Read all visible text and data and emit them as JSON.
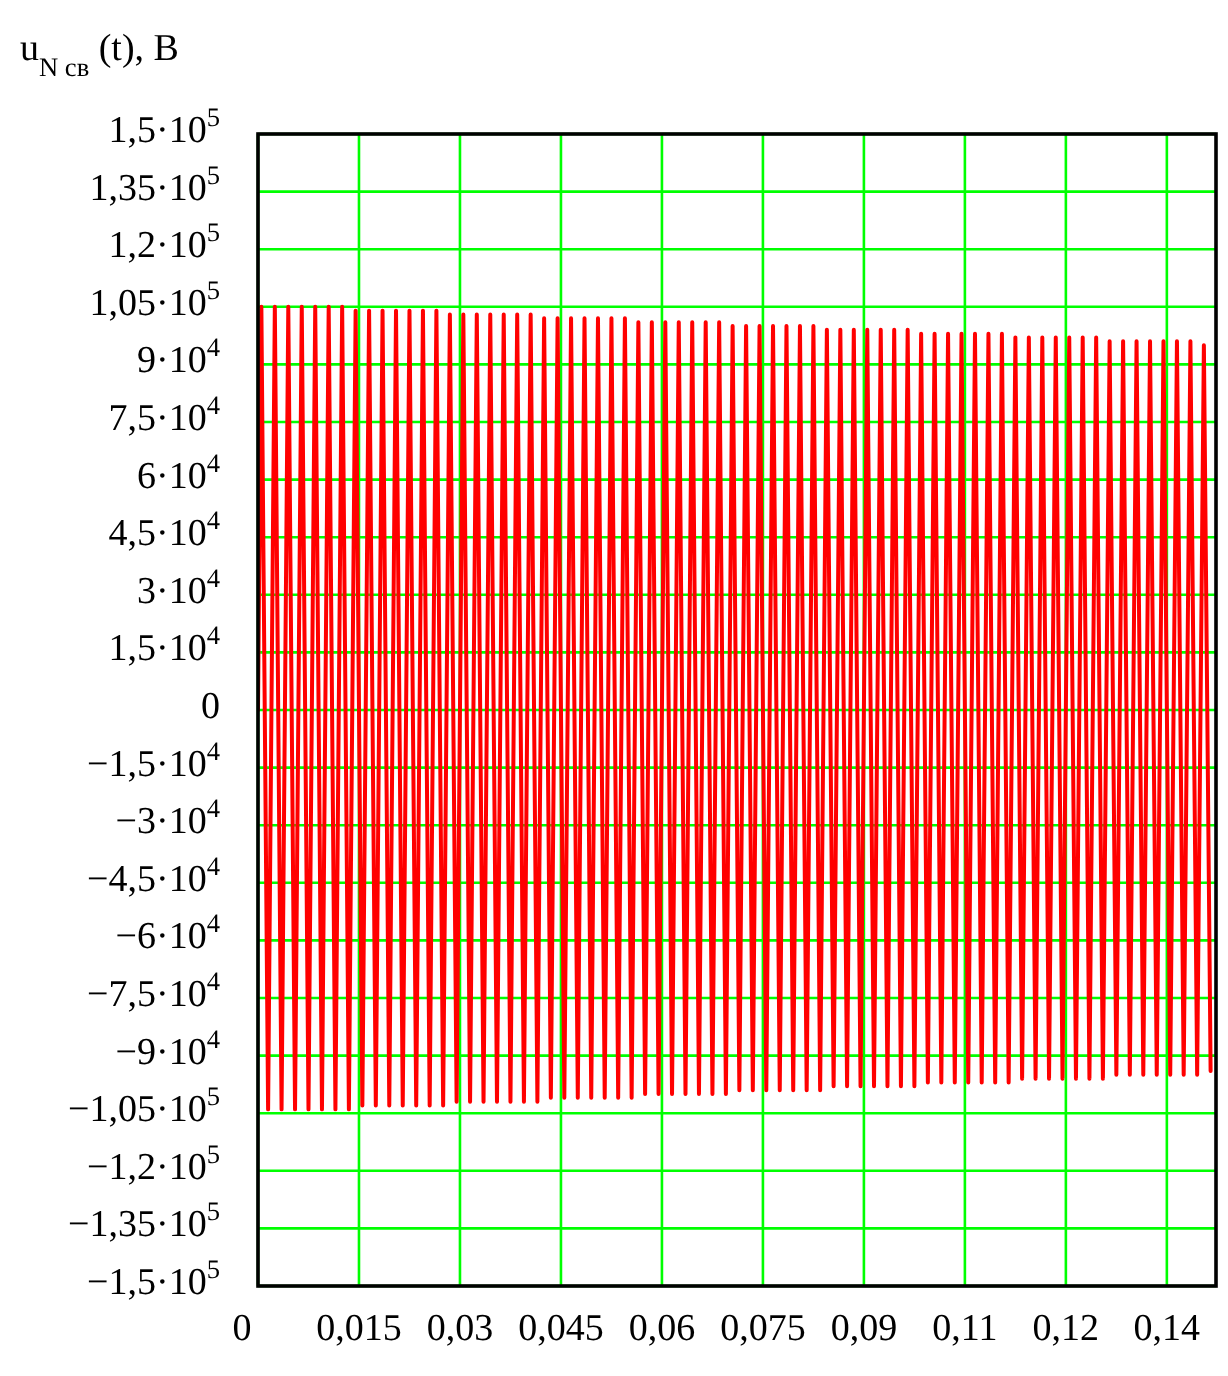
{
  "chart_data": {
    "type": "line",
    "ylabel": "u$_{N св}$ (t), В",
    "xlim": [
      0,
      0.1423
    ],
    "xticks": [
      0,
      {
        "value": 0.015,
        "label": "0,015"
      },
      {
        "value": 0.03,
        "label": "0,03"
      },
      {
        "value": 0.045,
        "label": "0,045"
      },
      {
        "value": 0.06,
        "label": "0,06"
      },
      {
        "value": 0.075,
        "label": "0,075"
      },
      {
        "value": 0.09,
        "label": "0,09"
      },
      {
        "value": 0.105,
        "label": "0,11"
      },
      {
        "value": 0.12,
        "label": "0,12"
      },
      {
        "value": 0.135,
        "label": "0,14"
      }
    ],
    "ylim": [
      -150000,
      150000
    ],
    "yticks": [
      {
        "value": 150000,
        "label": "1,5·10$^{5}$"
      },
      {
        "value": 135000,
        "label": "1,35·10$^{5}$"
      },
      {
        "value": 120000,
        "label": "1,2·10$^{5}$"
      },
      {
        "value": 105000,
        "label": "1,05·10$^{5}$"
      },
      {
        "value": 90000,
        "label": "9·10$^{4}$"
      },
      {
        "value": 75000,
        "label": "7,5·10$^{4}$"
      },
      {
        "value": 60000,
        "label": "6·10$^{4}$"
      },
      {
        "value": 45000,
        "label": "4,5·10$^{4}$"
      },
      {
        "value": 30000,
        "label": "3·10$^{4}$"
      },
      {
        "value": 15000,
        "label": "1,5·10$^{4}$"
      },
      0,
      {
        "value": -15000,
        "label": "−1,5·10$^{4}$"
      },
      {
        "value": -30000,
        "label": "−3·10$^{4}$"
      },
      {
        "value": -45000,
        "label": "−4,5·10$^{4}$"
      },
      {
        "value": -60000,
        "label": "−6·10$^{4}$"
      },
      {
        "value": -75000,
        "label": "−7,5·10$^{4}$"
      },
      {
        "value": -90000,
        "label": "−9·10$^{4}$"
      },
      {
        "value": -105000,
        "label": "−1,05·10$^{5}$"
      },
      {
        "value": -120000,
        "label": "−1,2·10$^{5}$"
      },
      {
        "value": -135000,
        "label": "−1,35·10$^{5}$"
      },
      {
        "value": -150000,
        "label": "−1,5·10$^{5}$"
      }
    ],
    "grid": true,
    "marker": "none",
    "line_style": "solid",
    "series": [
      {
        "color": "#ff0000",
        "x": [
          0,
          0.0005,
          0.0015,
          0.0025,
          0.0035,
          0.0045,
          0.0055,
          0.0065,
          0.0075,
          0.0085,
          0.0095,
          0.0105,
          0.0115,
          0.0125,
          0.0135,
          0.0145,
          0.0155,
          0.0165,
          0.0175,
          0.0185,
          0.0195,
          0.0205,
          0.0215,
          0.0225,
          0.0235,
          0.0245,
          0.0255,
          0.0265,
          0.0275,
          0.0285,
          0.0295,
          0.0305,
          0.0315,
          0.0325,
          0.0335,
          0.0345,
          0.0355,
          0.0365,
          0.0375,
          0.0385,
          0.0395,
          0.0405,
          0.0415,
          0.0425,
          0.0435,
          0.0445,
          0.0455,
          0.0465,
          0.0475,
          0.0485,
          0.0495,
          0.0505,
          0.0515,
          0.0525,
          0.0535,
          0.0545,
          0.0555,
          0.0565,
          0.0575,
          0.0585,
          0.0595,
          0.0605,
          0.0615,
          0.0625,
          0.0635,
          0.0645,
          0.0655,
          0.0665,
          0.0675,
          0.0685,
          0.0695,
          0.0705,
          0.0715,
          0.0725,
          0.0735,
          0.0745,
          0.0755,
          0.0765,
          0.0775,
          0.0785,
          0.0795,
          0.0805,
          0.0815,
          0.0825,
          0.0835,
          0.0845,
          0.0855,
          0.0865,
          0.0875,
          0.0885,
          0.0895,
          0.0905,
          0.0915,
          0.0925,
          0.0935,
          0.0945,
          0.0955,
          0.0965,
          0.0975,
          0.0985,
          0.0995,
          0.1005,
          0.1015,
          0.1025,
          0.1035,
          0.1045,
          0.1055,
          0.1065,
          0.1075,
          0.1085,
          0.1095,
          0.1105,
          0.1115,
          0.1125,
          0.1135,
          0.1145,
          0.1155,
          0.1165,
          0.1175,
          0.1185,
          0.1195,
          0.1205,
          0.1215,
          0.1225,
          0.1235,
          0.1245,
          0.1255,
          0.1265,
          0.1275,
          0.1285,
          0.1295,
          0.1305,
          0.1315,
          0.1325,
          0.1335,
          0.1345,
          0.1355,
          0.1365,
          0.1375,
          0.1385,
          0.1395,
          0.1405,
          0.1415
        ],
        "values": [
          0,
          105000,
          -104000,
          105000,
          -104000,
          105000,
          -104000,
          105000,
          -104000,
          105000,
          -104000,
          105000,
          -104000,
          105000,
          -104000,
          104000,
          -103000,
          104000,
          -103000,
          104000,
          -103000,
          104000,
          -103000,
          104000,
          -103000,
          104000,
          -103000,
          104000,
          -103000,
          103000,
          -102000,
          103000,
          -102000,
          103000,
          -102000,
          103000,
          -102000,
          103000,
          -102000,
          103000,
          -102000,
          103000,
          -102000,
          102000,
          -101000,
          102000,
          -101000,
          102000,
          -101000,
          102000,
          -101000,
          102000,
          -101000,
          102000,
          -101000,
          102000,
          -101000,
          101000,
          -100000,
          101000,
          -100000,
          101000,
          -100000,
          101000,
          -100000,
          101000,
          -100000,
          101000,
          -100000,
          101000,
          -100000,
          100000,
          -99000,
          100000,
          -99000,
          100000,
          -99000,
          100000,
          -99000,
          100000,
          -99000,
          100000,
          -99000,
          100000,
          -99000,
          99000,
          -98000,
          99000,
          -98000,
          99000,
          -98000,
          99000,
          -98000,
          99000,
          -98000,
          99000,
          -98000,
          99000,
          -98000,
          98000,
          -97000,
          98000,
          -97000,
          98000,
          -97000,
          98000,
          -97000,
          98000,
          -97000,
          98000,
          -97000,
          98000,
          -97000,
          97000,
          -96000,
          97000,
          -96000,
          97000,
          -96000,
          97000,
          -96000,
          97000,
          -96000,
          97000,
          -96000,
          97000,
          -96000,
          96000,
          -95000,
          96000,
          -95000,
          96000,
          -95000,
          96000,
          -95000,
          96000,
          -95000,
          96000,
          -95000,
          96000,
          -95000,
          95000,
          -94000
        ]
      }
    ]
  }
}
